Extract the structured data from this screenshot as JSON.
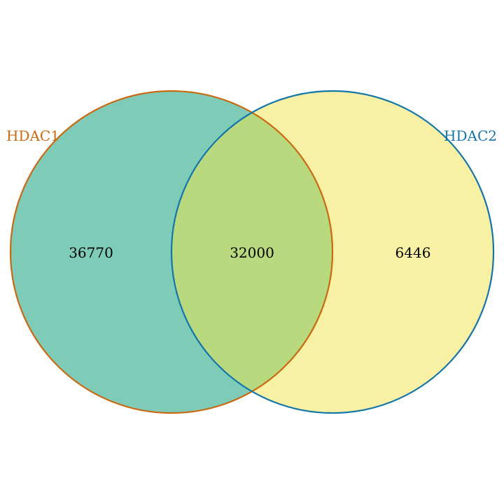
{
  "sets": [
    {
      "name": "HDAC1",
      "fill": "#5ebfa5",
      "stroke": "#c96a12",
      "label_color": "#c96a12"
    },
    {
      "name": "HDAC2",
      "fill": "#f6ee8e",
      "stroke": "#1476a8",
      "label_color": "#1476a8"
    }
  ],
  "overlap_fill": "#b9d97e",
  "counts": {
    "only_a": "36770",
    "both": "32000",
    "only_b": "6446"
  }
}
